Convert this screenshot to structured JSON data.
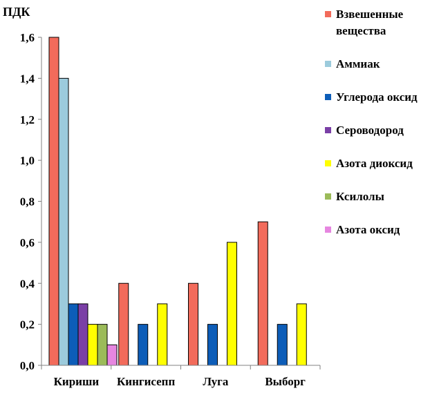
{
  "chart_data": {
    "type": "bar",
    "ylabel": "ПДК",
    "ylim": [
      0,
      1.6
    ],
    "ytick_step": 0.2,
    "ytick_labels": [
      "0,0",
      "0,2",
      "0,4",
      "0,6",
      "0,8",
      "1,0",
      "1,2",
      "1,4",
      "1,6"
    ],
    "categories": [
      "Кириши",
      "Кингисепп",
      "Луга",
      "Выборг"
    ],
    "grid": false,
    "legend_position": "right",
    "series": [
      {
        "name": "Взвешенные вещества",
        "legend_lines": [
          "Взвешенные",
          "вещества"
        ],
        "color": "#f26b5b",
        "values": [
          1.6,
          0.4,
          0.4,
          0.7
        ]
      },
      {
        "name": "Аммиак",
        "legend_lines": [
          "Аммиак"
        ],
        "color": "#9ccbdc",
        "values": [
          1.4,
          null,
          null,
          null
        ]
      },
      {
        "name": "Углерода оксид",
        "legend_lines": [
          "Углерода оксид"
        ],
        "color": "#0d5db8",
        "values": [
          0.3,
          0.2,
          0.2,
          0.2
        ]
      },
      {
        "name": "Сероводород",
        "legend_lines": [
          "Сероводород"
        ],
        "color": "#7a3fa6",
        "values": [
          0.3,
          null,
          null,
          null
        ]
      },
      {
        "name": "Азота диоксид",
        "legend_lines": [
          "Азота диоксид"
        ],
        "color": "#ffff00",
        "values": [
          0.2,
          0.3,
          0.6,
          0.3
        ]
      },
      {
        "name": "Ксилолы",
        "legend_lines": [
          "Ксилолы"
        ],
        "color": "#9bbb59",
        "values": [
          0.2,
          null,
          null,
          null
        ]
      },
      {
        "name": "Азота оксид",
        "legend_lines": [
          "Азота оксид"
        ],
        "color": "#e686e0",
        "values": [
          0.1,
          null,
          null,
          null
        ]
      }
    ]
  }
}
